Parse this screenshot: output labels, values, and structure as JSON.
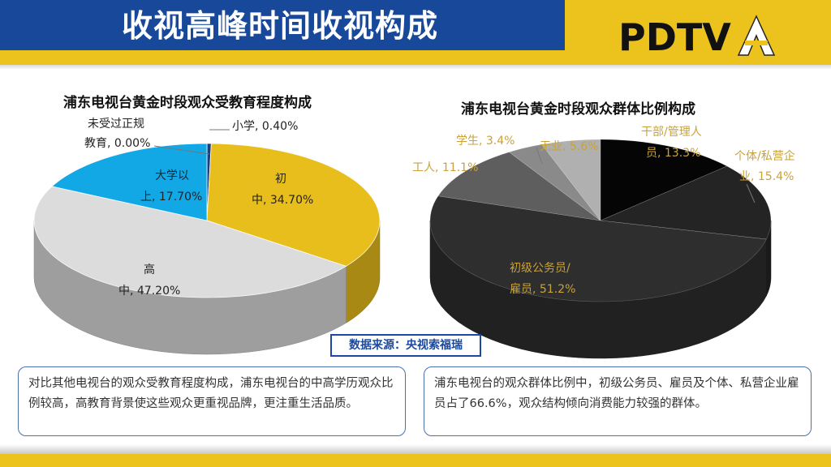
{
  "header": {
    "title": "收视高峰时间收视构成",
    "logo_text": "PDTV"
  },
  "education_chart": {
    "title": "浦东电视台黄金时段观众受教育程度构成",
    "labels": {
      "unschooled_line1": "未受过正规",
      "unschooled_line2": "教育, 0.00%",
      "primary": "小学, 0.40%",
      "junior_line1": "初",
      "junior_line2": "中, 34.70%",
      "senior_line1": "高",
      "senior_line2": "中, 47.20%",
      "univ_line1": "大学以",
      "univ_line2": "上, 17.70%"
    }
  },
  "group_chart": {
    "title": "浦东电视台黄金时段观众群体比例构成",
    "labels": {
      "cadre_line1": "干部/管理人",
      "cadre_line2": "员, 13.3%",
      "private_line1": "个体/私营企",
      "private_line2": "业, 15.4%",
      "clerk_line1": "初级公务员/",
      "clerk_line2": "雇员, 51.2%",
      "worker": "工人, 11.1%",
      "student": "学生, 3.4%",
      "unemployed": "无业, 5.6%"
    }
  },
  "chart_data": [
    {
      "type": "pie",
      "title": "浦东电视台黄金时段观众受教育程度构成",
      "categories": [
        "未受过正规教育",
        "小学",
        "初中",
        "高中",
        "大学以上"
      ],
      "values": [
        0.0,
        0.4,
        34.7,
        47.2,
        17.7
      ],
      "colors": [
        "#8c8c8c",
        "#1f3f7a",
        "#e8be1c",
        "#dcdcdc",
        "#12a8e6"
      ]
    },
    {
      "type": "pie",
      "title": "浦东电视台黄金时段观众群体比例构成",
      "categories": [
        "干部/管理人员",
        "个体/私营企业",
        "初级公务员/雇员",
        "工人",
        "学生",
        "无业"
      ],
      "values": [
        13.3,
        15.4,
        51.2,
        11.1,
        3.4,
        5.6
      ],
      "colors": [
        "#050505",
        "#242424",
        "#2e2e2e",
        "#5e5e5e",
        "#8a8a8a",
        "#b0b0b0"
      ]
    }
  ],
  "source": "数据来源：央视索福瑞",
  "notes": {
    "left": "对比其他电视台的观众受教育程度构成，浦东电视台的中高学历观众比例较高，高教育背景使这些观众更重视品牌，更注重生活品质。",
    "right": "浦东电视台的观众群体比例中，初级公务员、雇员及个体、私营企业雇员占了66.6%，观众结构倾向消费能力较强的群体。"
  }
}
